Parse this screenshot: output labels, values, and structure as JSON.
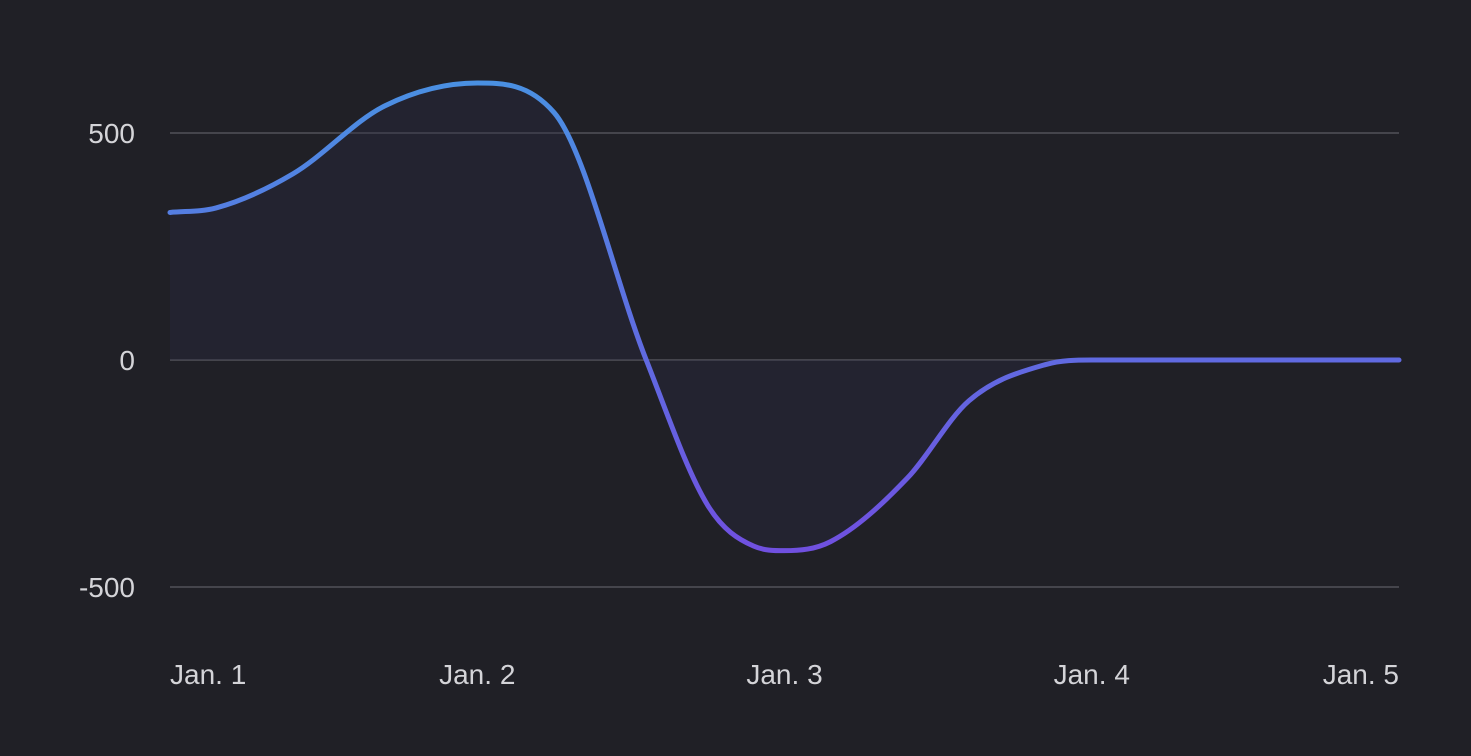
{
  "chart_data": {
    "type": "line",
    "title": "",
    "xlabel": "",
    "ylabel": "",
    "categories": [
      "Jan. 1",
      "Jan. 2",
      "Jan. 3",
      "Jan. 4",
      "Jan. 5"
    ],
    "x": [
      1,
      2,
      3,
      4,
      5
    ],
    "series": [
      {
        "x": [
          1,
          1.15,
          1.4,
          1.7,
          2,
          2.25,
          2.55,
          2.75,
          2.9,
          3,
          3.15,
          3.4,
          3.6,
          3.85,
          4,
          4.5,
          5
        ],
        "values": [
          325,
          335,
          410,
          560,
          610,
          545,
          0,
          -320,
          -410,
          -420,
          -400,
          -260,
          -90,
          -10,
          0,
          0,
          0
        ]
      }
    ],
    "ylim": [
      -620,
      640
    ],
    "xlim": [
      1,
      5
    ],
    "yticks": [
      -500,
      0,
      500
    ],
    "ytick_labels": [
      "-500",
      "0",
      "500"
    ],
    "grid": true,
    "legend": "none",
    "colors": {
      "background": "#202026",
      "grid": "#45454c",
      "tick_text": "#d4d4d8",
      "line_top": "#4a90e2",
      "line_bottom": "#7050e0",
      "fill": "#2a2a44"
    }
  }
}
